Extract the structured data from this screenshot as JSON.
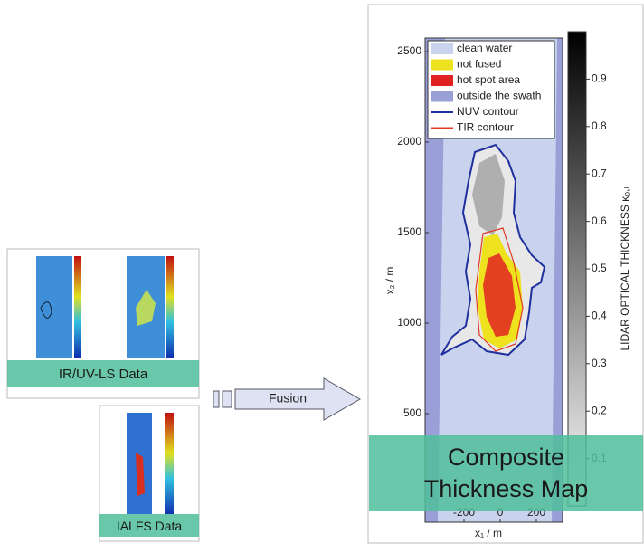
{
  "left_panels": [
    {
      "label": "IR/UV-LS Data"
    },
    {
      "label": "IALFS Data"
    }
  ],
  "arrow": {
    "label": "Fusion"
  },
  "map": {
    "banner": "Composite Thickness Map",
    "x_label": "x₁ / m",
    "y_label": "x₂ / m",
    "xlim": [
      -415,
      345
    ],
    "xticks": [
      -200,
      0,
      200
    ],
    "ylim": [
      -100,
      2575
    ],
    "yticks": [
      500,
      1000,
      1500,
      2000,
      2500
    ],
    "colorbar": {
      "label": "LIDAR OPTICAL THICKNESS κ₀,ₗ",
      "lim": [
        0,
        1
      ],
      "ticks": [
        0.1,
        0.2,
        0.3,
        0.4,
        0.5,
        0.6,
        0.7,
        0.8,
        0.9
      ]
    },
    "legend": [
      {
        "name": "clean water",
        "kind": "patch",
        "color": "#c9d3ee"
      },
      {
        "name": "not fused",
        "kind": "patch",
        "color": "#eee11e"
      },
      {
        "name": "hot spot area",
        "kind": "patch",
        "color": "#e02222"
      },
      {
        "name": "outside the swath",
        "kind": "patch",
        "color": "#9a9fd8"
      },
      {
        "name": "NUV contour",
        "kind": "line",
        "color": "#1f2f9e"
      },
      {
        "name": "TIR contour",
        "kind": "line",
        "color": "#e03a22"
      }
    ]
  }
}
